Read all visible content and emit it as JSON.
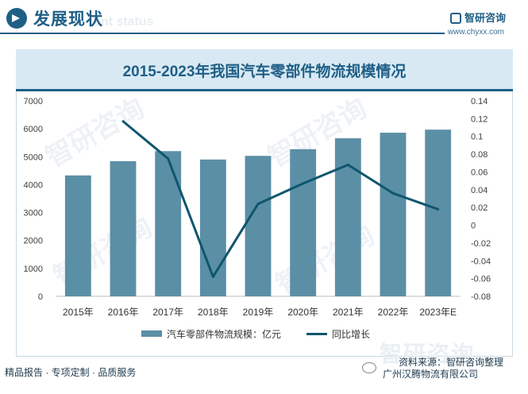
{
  "header": {
    "title": "发展现状",
    "subtitle_faded": "ent status",
    "brand": "智研咨询",
    "url": "www.chyxx.com"
  },
  "watermark_text": "智研咨询",
  "chart_data": {
    "type": "bar",
    "title": "2015-2023年我国汽车零部件物流规模情况",
    "categories": [
      "2015年",
      "2016年",
      "2017年",
      "2018年",
      "2019年",
      "2020年",
      "2021年",
      "2022年",
      "2023年E"
    ],
    "series": [
      {
        "name": "汽车零部件物流规模：亿元",
        "type": "bar",
        "axis": "left",
        "color": "#5b8fa6",
        "values": [
          4330,
          4840,
          5200,
          4900,
          5030,
          5270,
          5660,
          5860,
          5970
        ]
      },
      {
        "name": "同比增长",
        "type": "line",
        "axis": "right",
        "color": "#0f566d",
        "values": [
          null,
          0.117,
          0.075,
          -0.058,
          0.024,
          0.047,
          0.068,
          0.036,
          0.018
        ]
      }
    ],
    "ylim": [
      0,
      7000
    ],
    "y_ticks": [
      "0",
      "1000",
      "2000",
      "3000",
      "4000",
      "5000",
      "6000",
      "7000"
    ],
    "y2lim": [
      -0.08,
      0.14
    ],
    "y2_ticks": [
      "-0.08",
      "-0.06",
      "-0.04",
      "-0.02",
      "0",
      "0.02",
      "0.04",
      "0.06",
      "0.08",
      "0.1",
      "0.12",
      "0.14"
    ],
    "grid": false,
    "legend_position": "bottom"
  },
  "footer": {
    "left": "精品报告 · 专项定制 · 品质服务",
    "source": "资料来源：智研咨询整理",
    "credit": "广州汉腾物流有限公司",
    "logo_text": "智研咨询"
  }
}
